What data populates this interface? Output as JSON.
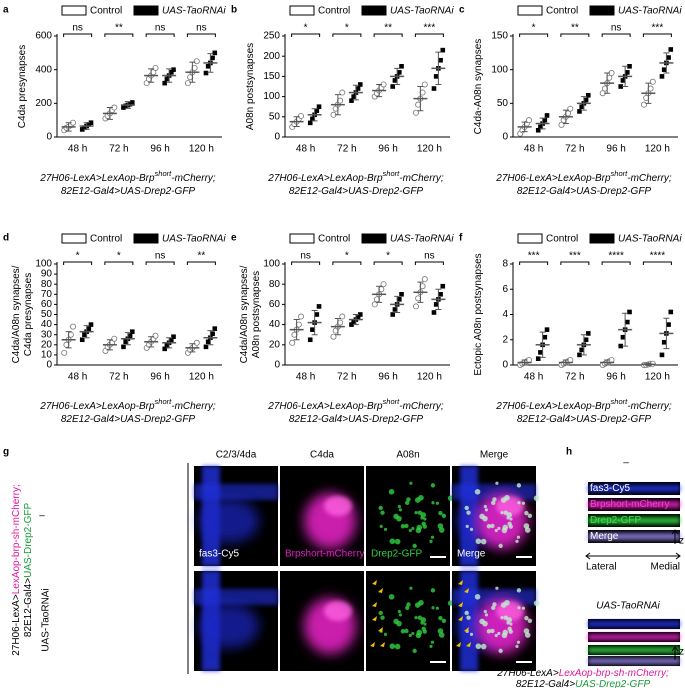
{
  "chart_data": [
    {
      "type": "dotplot",
      "panel": "a",
      "ylabel": [
        "C4da presynapses"
      ],
      "categories": [
        "48 h",
        "72 h",
        "96 h",
        "120 h"
      ],
      "ylim": [
        0,
        600
      ],
      "yticks": [
        0,
        200,
        400,
        600
      ],
      "significance": [
        "ns",
        "**",
        "ns",
        "ns"
      ],
      "xlabel": [
        [
          "27H06-LexA>LexAop-Brp",
          "short",
          "-mCherry;"
        ],
        [
          "82E12-Gal4>UAS-Drep2-GFP"
        ]
      ],
      "series": [
        {
          "name": "Control",
          "color": "#ffffff",
          "values": [
            60,
            140,
            365,
            385
          ],
          "errors": [
            25,
            35,
            40,
            60
          ],
          "points": [
            [
              40,
              55,
              62,
              70,
              85
            ],
            [
              110,
              125,
              140,
              160,
              175
            ],
            [
              320,
              345,
              365,
              385,
              410
            ],
            [
              320,
              355,
              385,
              410,
              450
            ]
          ]
        },
        {
          "name": "UAS-TaoRNAi",
          "color": "#000000",
          "values": [
            65,
            190,
            365,
            440
          ],
          "errors": [
            20,
            20,
            40,
            55
          ],
          "points": [
            [
              45,
              55,
              65,
              75,
              85
            ],
            [
              175,
              185,
              190,
              195,
              205
            ],
            [
              320,
              345,
              365,
              385,
              400
            ],
            [
              380,
              420,
              440,
              470,
              500
            ]
          ]
        }
      ]
    },
    {
      "type": "dotplot",
      "panel": "b",
      "ylabel": [
        "A08n postsynapses"
      ],
      "categories": [
        "48 h",
        "72 h",
        "96 h",
        "120 h"
      ],
      "ylim": [
        0,
        250
      ],
      "yticks": [
        0,
        50,
        100,
        150,
        200,
        250
      ],
      "significance": [
        "*",
        "*",
        "**",
        "***"
      ],
      "xlabel": [
        [
          "27H06-LexA>LexAop-Brp",
          "short",
          "-mCherry;"
        ],
        [
          "82E12-Gal4>UAS-Drep2-GFP"
        ]
      ],
      "series": [
        {
          "name": "Control",
          "color": "#ffffff",
          "values": [
            38,
            80,
            115,
            95
          ],
          "errors": [
            12,
            25,
            15,
            30
          ],
          "points": [
            [
              25,
              32,
              38,
              45,
              52
            ],
            [
              55,
              70,
              80,
              90,
              110
            ],
            [
              100,
              108,
              115,
              122,
              130
            ],
            [
              60,
              80,
              95,
              110,
              130
            ]
          ]
        },
        {
          "name": "UAS-TaoRNAi",
          "color": "#000000",
          "values": [
            55,
            110,
            150,
            170
          ],
          "errors": [
            15,
            18,
            20,
            40
          ],
          "points": [
            [
              35,
              45,
              55,
              65,
              75
            ],
            [
              90,
              100,
              110,
              120,
              130
            ],
            [
              125,
              140,
              150,
              160,
              175
            ],
            [
              120,
              150,
              170,
              190,
              215
            ]
          ]
        }
      ]
    },
    {
      "type": "dotplot",
      "panel": "c",
      "ylabel": [
        "C4da-A08n synapses"
      ],
      "categories": [
        "48 h",
        "72 h",
        "96 h",
        "120 h"
      ],
      "ylim": [
        0,
        150
      ],
      "yticks": [
        0,
        50,
        100,
        150
      ],
      "significance": [
        "*",
        "**",
        "ns",
        "***"
      ],
      "xlabel": [
        [
          "27H06-LexA>LexAop-Brp",
          "short",
          "-mCherry;"
        ],
        [
          "82E12-Gal4>UAS-Drep2-GFP"
        ]
      ],
      "series": [
        {
          "name": "Control",
          "color": "#ffffff",
          "values": [
            15,
            30,
            80,
            65
          ],
          "errors": [
            7,
            10,
            15,
            15
          ],
          "points": [
            [
              5,
              10,
              15,
              20,
              25
            ],
            [
              18,
              25,
              30,
              35,
              42
            ],
            [
              65,
              72,
              80,
              88,
              95
            ],
            [
              48,
              58,
              65,
              72,
              82
            ]
          ]
        },
        {
          "name": "UAS-TaoRNAi",
          "color": "#000000",
          "values": [
            20,
            50,
            90,
            110
          ],
          "errors": [
            8,
            10,
            15,
            15
          ],
          "points": [
            [
              10,
              15,
              20,
              25,
              32
            ],
            [
              38,
              45,
              50,
              55,
              62
            ],
            [
              75,
              84,
              90,
              96,
              105
            ],
            [
              90,
              100,
              110,
              118,
              130
            ]
          ]
        }
      ]
    },
    {
      "type": "dotplot",
      "panel": "d",
      "ylabel": [
        "C4da/A08n synapses/",
        "C4da presynapses"
      ],
      "categories": [
        "48 h",
        "72 h",
        "96 h",
        "120 h"
      ],
      "ylim": [
        0,
        100
      ],
      "yticks": [
        0,
        10,
        20,
        30,
        40,
        50,
        60,
        70,
        80,
        90,
        100
      ],
      "significance": [
        "*",
        "*",
        "ns",
        "**"
      ],
      "xlabel": [
        [
          "27H06-LexA>LexAop-Brp",
          "short",
          "-mCherry;"
        ],
        [
          "82E12-Gal4>UAS-Drep2-GFP"
        ]
      ],
      "series": [
        {
          "name": "Control",
          "color": "#ffffff",
          "values": [
            25,
            20,
            23,
            17
          ],
          "errors": [
            8,
            5,
            5,
            4
          ],
          "points": [
            [
              12,
              20,
              25,
              30,
              38
            ],
            [
              14,
              18,
              20,
              22,
              26
            ],
            [
              17,
              20,
              23,
              26,
              29
            ],
            [
              12,
              15,
              17,
              19,
              22
            ]
          ]
        },
        {
          "name": "UAS-TaoRNAi",
          "color": "#000000",
          "values": [
            33,
            26,
            22,
            27
          ],
          "errors": [
            6,
            6,
            5,
            7
          ],
          "points": [
            [
              25,
              30,
              33,
              36,
              40
            ],
            [
              18,
              23,
              26,
              29,
              33
            ],
            [
              16,
              19,
              22,
              25,
              28
            ],
            [
              18,
              23,
              27,
              31,
              36
            ]
          ]
        }
      ]
    },
    {
      "type": "dotplot",
      "panel": "e",
      "ylabel": [
        "C4da/A08n synapses/",
        "A08n postsynapses"
      ],
      "categories": [
        "48 h",
        "72 h",
        "96 h",
        "120 h"
      ],
      "ylim": [
        0,
        100
      ],
      "yticks": [
        0,
        20,
        40,
        60,
        80,
        100
      ],
      "significance": [
        "ns",
        "*",
        "*",
        "ns"
      ],
      "xlabel": [
        [
          "27H06-LexA>LexAop-Brp",
          "short",
          "-mCherry;"
        ],
        [
          "82E12-Gal4>UAS-Drep2-GFP"
        ]
      ],
      "series": [
        {
          "name": "Control",
          "color": "#ffffff",
          "values": [
            35,
            38,
            70,
            72
          ],
          "errors": [
            10,
            8,
            8,
            10
          ],
          "points": [
            [
              22,
              30,
              35,
              40,
              48
            ],
            [
              28,
              34,
              38,
              42,
              48
            ],
            [
              60,
              65,
              70,
              75,
              80
            ],
            [
              58,
              66,
              72,
              78,
              85
            ]
          ]
        },
        {
          "name": "UAS-TaoRNAi",
          "color": "#000000",
          "values": [
            42,
            45,
            60,
            65
          ],
          "errors": [
            12,
            5,
            8,
            10
          ],
          "points": [
            [
              25,
              35,
              42,
              50,
              58
            ],
            [
              40,
              43,
              45,
              47,
              50
            ],
            [
              50,
              55,
              60,
              65,
              70
            ],
            [
              52,
              60,
              65,
              70,
              78
            ]
          ]
        }
      ]
    },
    {
      "type": "dotplot",
      "panel": "f",
      "ylabel": [
        "Ectopic A08n postsynapses"
      ],
      "categories": [
        "48 h",
        "72 h",
        "96 h",
        "120 h"
      ],
      "ylim": [
        0,
        8
      ],
      "yticks": [
        0,
        2,
        4,
        6,
        8
      ],
      "significance": [
        "***",
        "***",
        "****",
        "****"
      ],
      "xlabel": [
        [
          "27H06-LexA>LexAop-Brp",
          "short",
          "-mCherry;"
        ],
        [
          "82E12-Gal4>UAS-Drep2-GFP"
        ]
      ],
      "series": [
        {
          "name": "Control",
          "color": "#ffffff",
          "values": [
            0.2,
            0.2,
            0.2,
            0.05
          ],
          "errors": [
            0.2,
            0.2,
            0.2,
            0.1
          ],
          "points": [
            [
              0,
              0.1,
              0.2,
              0.3,
              0.4
            ],
            [
              0,
              0.1,
              0.2,
              0.3,
              0.4
            ],
            [
              0,
              0.1,
              0.2,
              0.3,
              0.4
            ],
            [
              0,
              0,
              0.05,
              0.1,
              0.1
            ]
          ]
        },
        {
          "name": "UAS-TaoRNAi",
          "color": "#000000",
          "values": [
            1.6,
            1.6,
            2.8,
            2.5
          ],
          "errors": [
            1,
            0.8,
            1.3,
            1.2
          ],
          "points": [
            [
              0.5,
              1,
              1.6,
              2.2,
              2.8
            ],
            [
              0.8,
              1.2,
              1.6,
              2,
              2.5
            ],
            [
              1.5,
              2.2,
              2.8,
              3.4,
              4.2
            ],
            [
              0.8,
              1.8,
              2.5,
              3.2,
              4.2
            ]
          ]
        }
      ]
    }
  ],
  "panel_g": {
    "label": "g",
    "columns": [
      "C2/3/4da",
      "C4da",
      "A08n",
      "Merge"
    ],
    "rows": [
      "–",
      "UAS-TaoRNAi"
    ],
    "channels": [
      "fas3-Cy5",
      "Brpshort-mCherry",
      "Drep2-GFP",
      "Merge"
    ],
    "genotype": [
      [
        {
          "text": "27H06-LexA>",
          "color": "#000000"
        },
        {
          "text": "LexAop-brp-sh-mCherry;",
          "color": "#e0189a"
        }
      ],
      [
        {
          "text": "82E12-Gal4>",
          "color": "#000000"
        },
        {
          "text": "UAS-Drep2-GFP",
          "color": "#1a9a3a"
        }
      ]
    ]
  },
  "panel_h": {
    "label": "h",
    "control": "–",
    "channels": [
      "fas3-Cy5",
      "Brpshort-mCherry",
      "Drep2-GFP",
      "Merge"
    ],
    "axis": "z",
    "lateral": "Lateral",
    "medial": "Medial",
    "rnai": "UAS-TaoRNAi",
    "genotype": [
      [
        {
          "text": "27H06-LexA>",
          "color": "#000000"
        },
        {
          "text": "LexAop-brp-sh-mCherry;",
          "color": "#e0189a"
        }
      ],
      [
        {
          "text": "82E12-Gal4>",
          "color": "#000000"
        },
        {
          "text": "UAS-Drep2-GFP",
          "color": "#1a9a3a"
        }
      ]
    ]
  }
}
